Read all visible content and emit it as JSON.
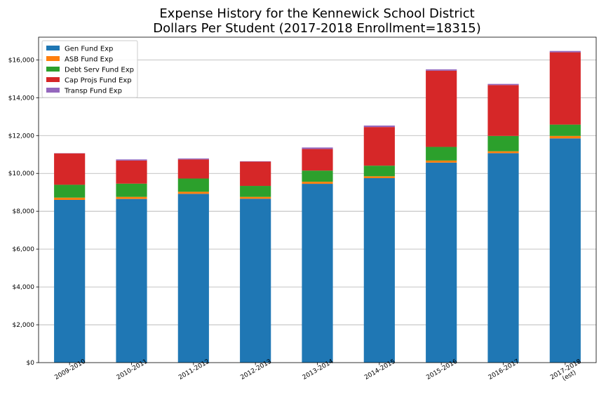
{
  "chart_data": {
    "type": "bar",
    "stacked": true,
    "title_lines": [
      "Expense History for the Kennewick School District",
      "Dollars Per Student (2017-2018 Enrollment=18315)"
    ],
    "xlabel": "",
    "ylabel": "",
    "categories": [
      [
        "2009-2010"
      ],
      [
        "2010-2011"
      ],
      [
        "2011-2012"
      ],
      [
        "2012-2013"
      ],
      [
        "2013-2014"
      ],
      [
        "2014-2015"
      ],
      [
        "2015-2016"
      ],
      [
        "2016-2017"
      ],
      [
        "2017-2018",
        "(est)"
      ]
    ],
    "series": [
      {
        "name": "Gen Fund Exp",
        "color": "#1f77b4",
        "values": [
          8600,
          8650,
          8920,
          8660,
          9450,
          9750,
          10570,
          11070,
          11850
        ]
      },
      {
        "name": "ASB Fund Exp",
        "color": "#ff7f0e",
        "values": [
          120,
          110,
          110,
          100,
          110,
          100,
          110,
          100,
          130
        ]
      },
      {
        "name": "Debt Serv Fund Exp",
        "color": "#2ca02c",
        "values": [
          680,
          700,
          700,
          580,
          590,
          560,
          720,
          810,
          600
        ]
      },
      {
        "name": "Cap Projs Fund Exp",
        "color": "#d62728",
        "values": [
          1660,
          1220,
          1010,
          1280,
          1140,
          2040,
          4030,
          2690,
          3820
        ]
      },
      {
        "name": "Transp Fund Exp",
        "color": "#9467bd",
        "values": [
          10,
          60,
          50,
          20,
          80,
          80,
          70,
          60,
          70
        ]
      }
    ],
    "ylim": [
      0,
      17200
    ],
    "yticks": [
      0,
      2000,
      4000,
      6000,
      8000,
      10000,
      12000,
      14000,
      16000
    ],
    "ytick_labels": [
      "$0",
      "$2,000",
      "$4,000",
      "$6,000",
      "$8,000",
      "$10,000",
      "$12,000",
      "$14,000",
      "$16,000"
    ],
    "grid": "y",
    "legend_position": "top-left"
  }
}
